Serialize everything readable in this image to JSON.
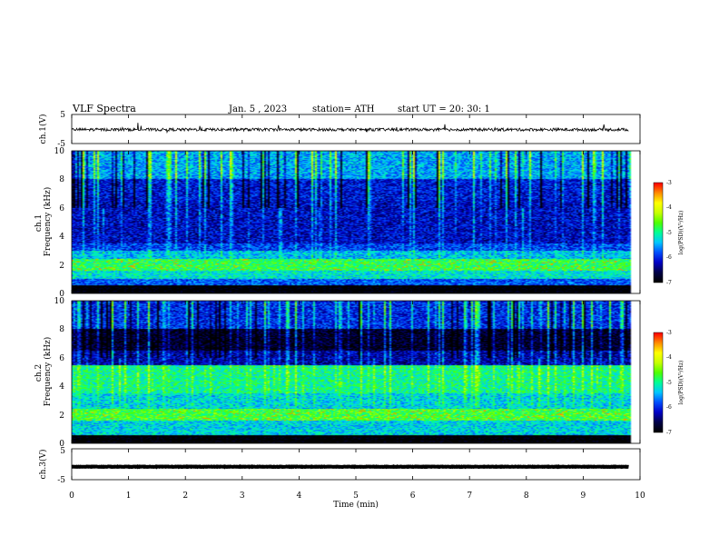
{
  "header": {
    "title": "VLF  Spectra",
    "date": "Jan. 5  , 2023",
    "station": "station= ATH",
    "start": "start  UT  =   20: 30: 1"
  },
  "colors": {
    "colormap": [
      "#000000",
      "#00004a",
      "#0000c8",
      "#0050ff",
      "#00c8ff",
      "#00ff96",
      "#50ff00",
      "#c8ff00",
      "#ffff00",
      "#ff8c00",
      "#ff0000",
      "#ffffff"
    ],
    "trace": "#000000"
  },
  "chart_data": [
    {
      "type": "line",
      "name": "ch1-waveform",
      "ylabel": "ch.1(V)",
      "ylim": [
        -5,
        5
      ],
      "yticks": [
        "5",
        "-5"
      ],
      "x_range_min": [
        0,
        9.8
      ],
      "mean_value": -0.2,
      "noise_amplitude": 0.5
    },
    {
      "type": "heatmap",
      "name": "ch1-spectrogram",
      "ylabel": "ch.1\nFrequency  (kHz)",
      "ylim": [
        0,
        10
      ],
      "yticks": [
        "0",
        "2",
        "4",
        "6",
        "8",
        "10"
      ],
      "x_range_min": [
        0,
        9.8
      ],
      "colorbar": {
        "label": "log(PSD)(V²/Hz)",
        "range": [
          -7,
          -3
        ],
        "ticks": [
          "-3",
          "-4",
          "-5",
          "-6",
          "-7"
        ]
      },
      "bands_khz_log_psd": [
        {
          "from": 0,
          "to": 0.6,
          "value": -7.1
        },
        {
          "from": 0.6,
          "to": 1.0,
          "value": -5.8
        },
        {
          "from": 1.0,
          "to": 1.6,
          "value": -5.2
        },
        {
          "from": 1.6,
          "to": 2.4,
          "value": -4.8
        },
        {
          "from": 2.4,
          "to": 3.0,
          "value": -5.4
        },
        {
          "from": 3.0,
          "to": 3.5,
          "value": -5.9
        },
        {
          "from": 3.5,
          "to": 6.5,
          "value": -6.2
        },
        {
          "from": 6.5,
          "to": 8.0,
          "value": -6.1
        },
        {
          "from": 8.0,
          "to": 10.0,
          "value": -5.5
        }
      ]
    },
    {
      "type": "heatmap",
      "name": "ch2-spectrogram",
      "ylabel": "ch.2\nFrequency  (kHz)",
      "ylim": [
        0,
        10
      ],
      "yticks": [
        "0",
        "2",
        "4",
        "6",
        "8",
        "10"
      ],
      "x_range_min": [
        0,
        9.8
      ],
      "colorbar": {
        "label": "log(PSD)(V²/Hz)",
        "range": [
          -7,
          -3
        ],
        "ticks": [
          "-3",
          "-4",
          "-5",
          "-6",
          "-7"
        ]
      },
      "bands_khz_log_psd": [
        {
          "from": 0,
          "to": 0.6,
          "value": -7.1
        },
        {
          "from": 0.6,
          "to": 1.6,
          "value": -5.3
        },
        {
          "from": 1.6,
          "to": 2.4,
          "value": -4.7
        },
        {
          "from": 2.4,
          "to": 3.5,
          "value": -5.3
        },
        {
          "from": 3.5,
          "to": 5.5,
          "value": -5.0
        },
        {
          "from": 5.5,
          "to": 6.5,
          "value": -6.3
        },
        {
          "from": 6.5,
          "to": 8.0,
          "value": -6.8
        },
        {
          "from": 8.0,
          "to": 10.0,
          "value": -6.0
        }
      ]
    },
    {
      "type": "line",
      "name": "ch3-waveform",
      "ylabel": "ch.3(V)",
      "ylim": [
        -5,
        5
      ],
      "yticks": [
        "5",
        "-5"
      ],
      "x_range_min": [
        0,
        9.8
      ],
      "mean_value": -0.8,
      "noise_amplitude": 0.08
    }
  ],
  "x_axis": {
    "label": "Time  (min)",
    "xlim": [
      0,
      10
    ],
    "ticks": [
      "0",
      "1",
      "2",
      "3",
      "4",
      "5",
      "6",
      "7",
      "8",
      "9",
      "10"
    ]
  }
}
